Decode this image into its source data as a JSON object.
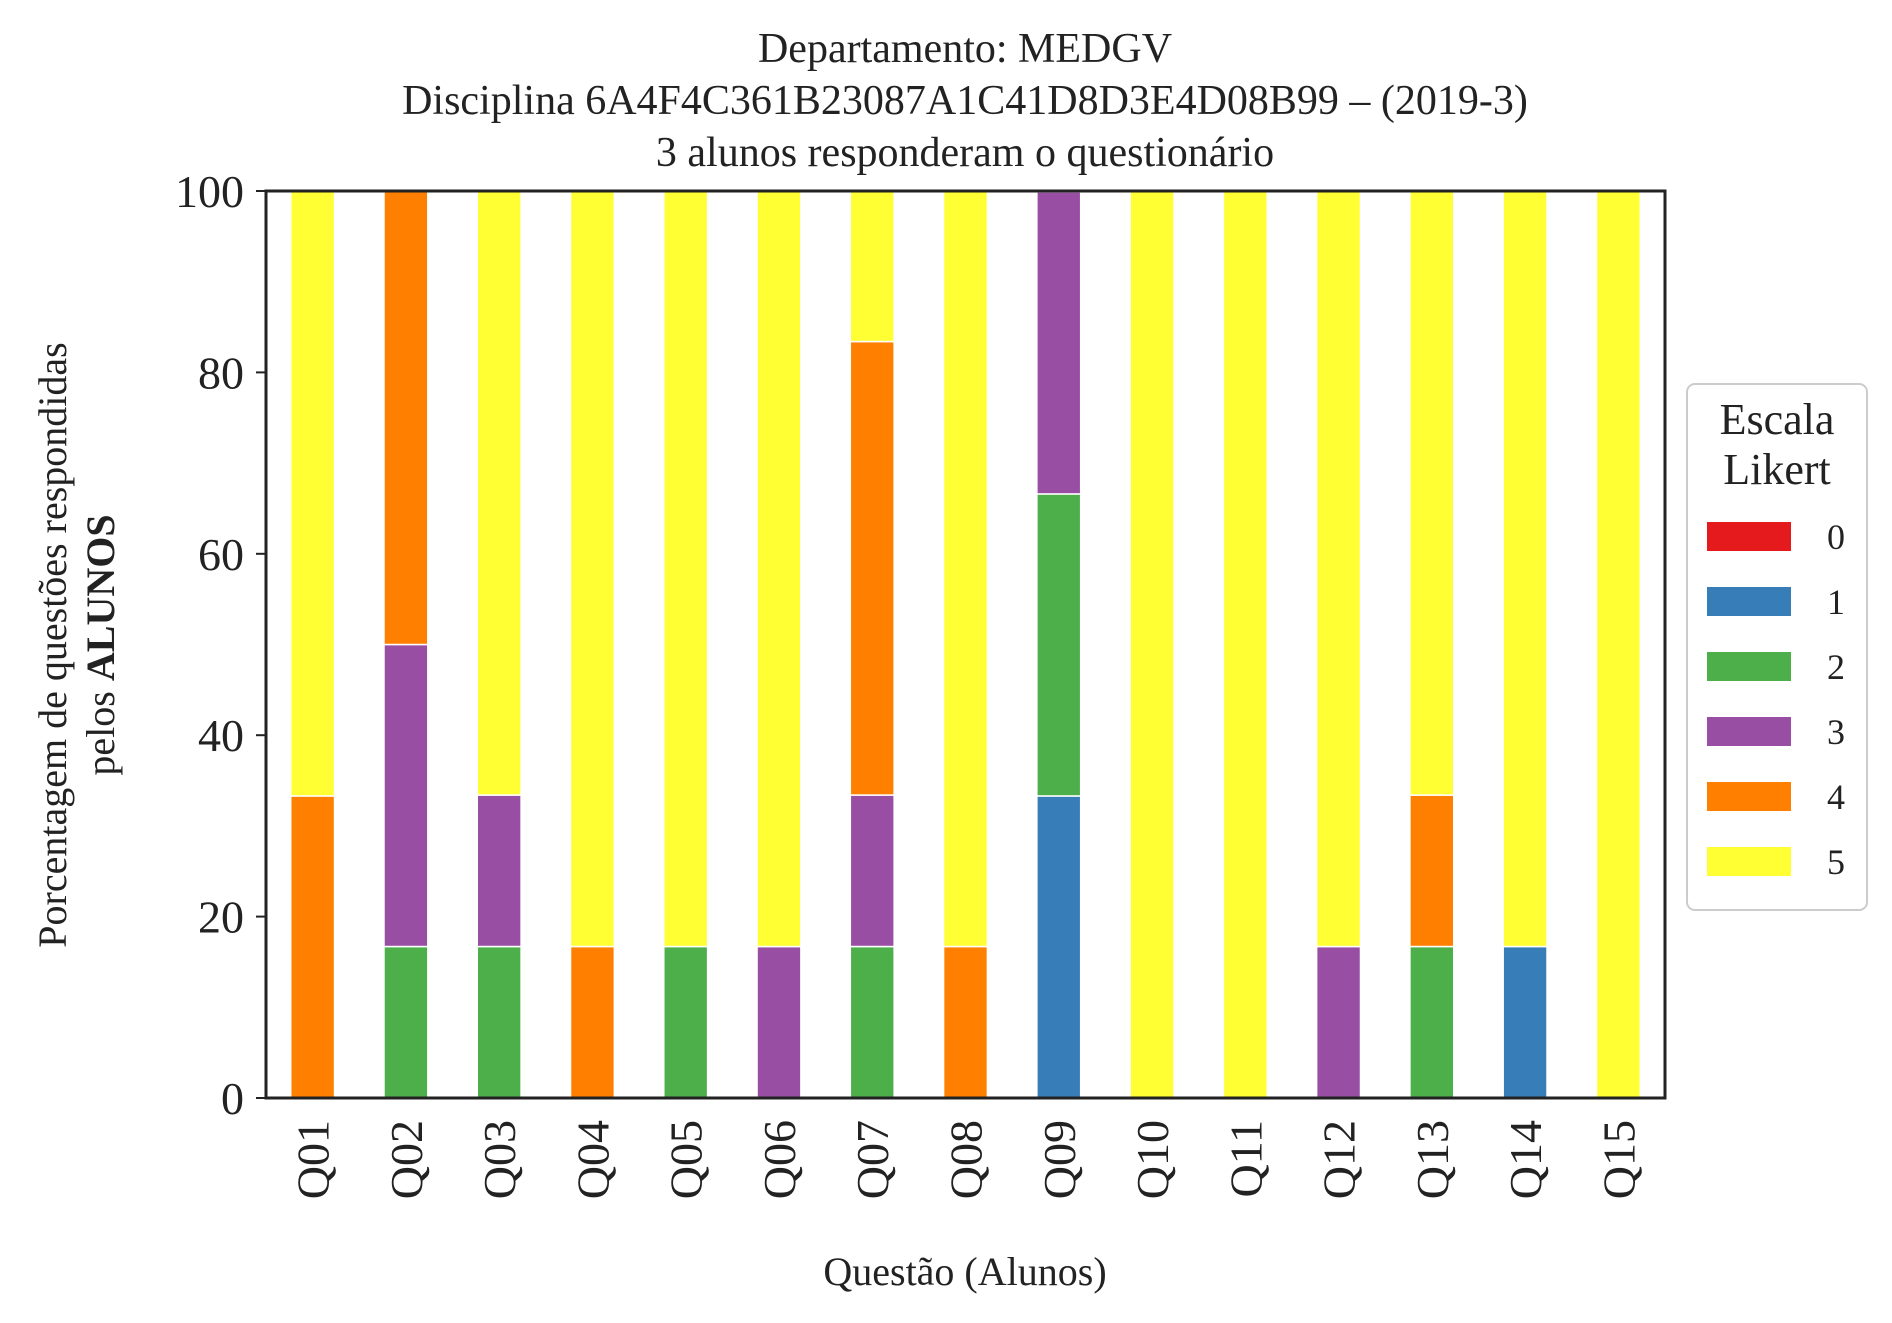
{
  "chart_data": {
    "type": "bar",
    "stacked": true,
    "title": [
      "Departamento: MEDGV",
      "Disciplina 6A4F4C361B23087A1C41D8D3E4D08B99 – (2019-3)",
      "3 alunos responderam o questionário"
    ],
    "xlabel": "Questão (Alunos)",
    "ylabel_line1": "Porcentagem de questões respondidas",
    "ylabel_line2_prefix": "pelos ",
    "ylabel_line2_bold": "ALUNOS",
    "ylim": [
      0,
      100
    ],
    "yticks": [
      0,
      20,
      40,
      60,
      80,
      100
    ],
    "grid": false,
    "legend_title": [
      "Escala",
      "Likert"
    ],
    "legend_position": "center-right",
    "categories": [
      "Q01",
      "Q02",
      "Q03",
      "Q04",
      "Q05",
      "Q06",
      "Q07",
      "Q08",
      "Q09",
      "Q10",
      "Q11",
      "Q12",
      "Q13",
      "Q14",
      "Q15"
    ],
    "series": [
      {
        "name": "0",
        "color": "#e41a1c",
        "values": [
          0,
          0,
          0,
          0,
          0,
          0,
          0,
          0,
          0,
          0,
          0,
          0,
          0,
          0,
          0
        ]
      },
      {
        "name": "1",
        "color": "#377eb8",
        "values": [
          0,
          0,
          0,
          0,
          0,
          0,
          0,
          0,
          33.3,
          0,
          0,
          0,
          0,
          16.7,
          0
        ]
      },
      {
        "name": "2",
        "color": "#4daf4a",
        "values": [
          0,
          16.7,
          16.7,
          0,
          16.7,
          0,
          16.7,
          0,
          33.3,
          0,
          0,
          0,
          16.7,
          0,
          0
        ]
      },
      {
        "name": "3",
        "color": "#984ea3",
        "values": [
          0,
          33.3,
          16.7,
          0,
          0,
          16.7,
          16.7,
          0,
          33.3,
          0,
          0,
          16.7,
          0,
          0,
          0
        ]
      },
      {
        "name": "4",
        "color": "#ff7f00",
        "values": [
          33.3,
          50,
          0,
          16.7,
          0,
          0,
          50,
          16.7,
          0,
          0,
          0,
          0,
          16.7,
          0,
          0
        ]
      },
      {
        "name": "5",
        "color": "#ffff33",
        "values": [
          66.7,
          0,
          66.7,
          83.3,
          83.3,
          83.3,
          16.7,
          83.3,
          0,
          100,
          100,
          83.3,
          66.7,
          83.3,
          100
        ]
      }
    ]
  }
}
